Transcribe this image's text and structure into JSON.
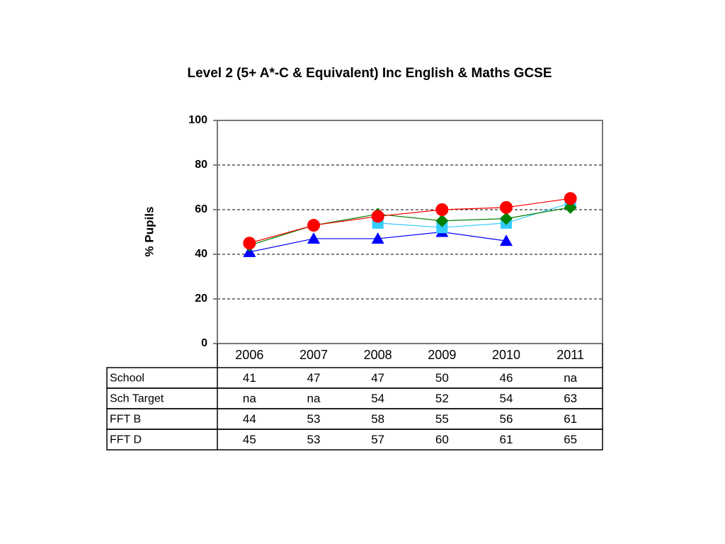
{
  "chart_data": {
    "type": "line",
    "title": "Level 2 (5+ A*-C & Equivalent) Inc English & Maths GCSE",
    "y_label": "% Pupils",
    "categories": [
      "2006",
      "2007",
      "2008",
      "2009",
      "2010",
      "2011"
    ],
    "series": [
      {
        "name": "School",
        "color": "#0000ff",
        "marker": "triangle",
        "values": [
          41,
          47,
          47,
          50,
          46,
          null
        ],
        "value_labels": [
          "41",
          "47",
          "47",
          "50",
          "46",
          "na"
        ]
      },
      {
        "name": "Sch Target",
        "color": "#33ccff",
        "marker": "square",
        "values": [
          null,
          null,
          54,
          52,
          54,
          63
        ],
        "value_labels": [
          "na",
          "na",
          "54",
          "52",
          "54",
          "63"
        ]
      },
      {
        "name": "FFT B",
        "color": "#008000",
        "marker": "diamond",
        "values": [
          44,
          53,
          58,
          55,
          56,
          61
        ]
      },
      {
        "name": "FFT D",
        "color": "#ff0000",
        "marker": "circle",
        "values": [
          45,
          53,
          57,
          60,
          61,
          65
        ]
      }
    ],
    "ylim": [
      0,
      100
    ],
    "yticks": [
      0,
      20,
      40,
      60,
      80,
      100
    ],
    "grid": true
  }
}
